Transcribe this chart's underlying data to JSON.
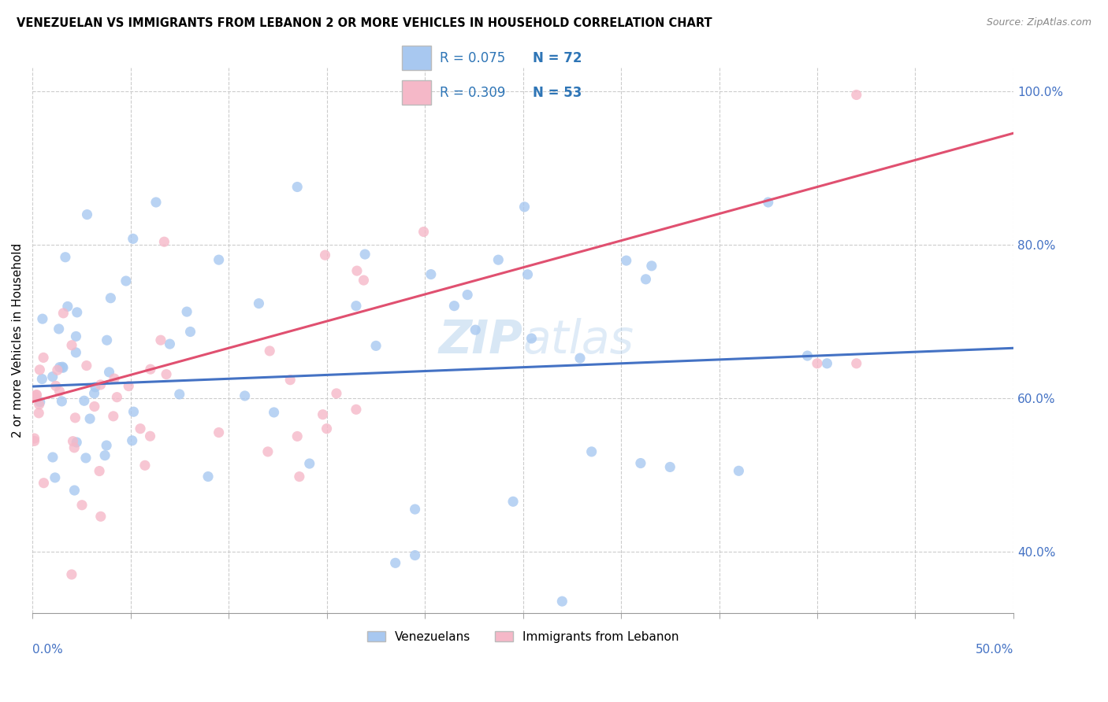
{
  "title": "VENEZUELAN VS IMMIGRANTS FROM LEBANON 2 OR MORE VEHICLES IN HOUSEHOLD CORRELATION CHART",
  "source": "Source: ZipAtlas.com",
  "ylabel": "2 or more Vehicles in Household",
  "label1": "Venezuelans",
  "label2": "Immigrants from Lebanon",
  "color1": "#A8C8F0",
  "color2": "#F5B8C8",
  "line_color1": "#4472C4",
  "line_color2": "#E05070",
  "watermark_zip": "ZIP",
  "watermark_atlas": "atlas",
  "legend_r1": "R = 0.075",
  "legend_n1": "N = 72",
  "legend_r2": "R = 0.309",
  "legend_n2": "N = 53",
  "xmin": 0.0,
  "xmax": 0.5,
  "ymin": 0.32,
  "ymax": 1.03,
  "yticks": [
    0.4,
    0.6,
    0.8,
    1.0
  ],
  "ytick_labels": [
    "40.0%",
    "60.0%",
    "80.0%",
    "100.0%"
  ],
  "blue_line_x0": 0.0,
  "blue_line_y0": 0.615,
  "blue_line_x1": 0.5,
  "blue_line_y1": 0.665,
  "pink_line_x0": 0.0,
  "pink_line_y0": 0.595,
  "pink_line_x1": 0.5,
  "pink_line_y1": 0.945
}
